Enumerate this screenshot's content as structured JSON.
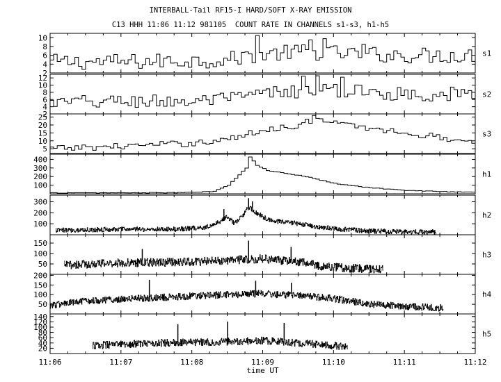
{
  "title_line1": "INTERBALL-Tail RF15-I HARD/SOFT X-RAY EMISSION",
  "title_line2": "C13 HHH 11:06 11:12 981105  COUNT RATE IN CHANNELS s1-s3, h1-h5",
  "chart_data": {
    "type": "line",
    "style": "stepped time series, stacked panels, black on white",
    "xlabel": "time UT",
    "x_unit": "minutes after 11:06 UT",
    "xlim": [
      0,
      6
    ],
    "x_ticks": [
      0,
      1,
      2,
      3,
      4,
      5,
      6
    ],
    "x_tick_labels": [
      "11:06",
      "11:07",
      "11:08",
      "11:09",
      "11:10",
      "11:11",
      "11:12"
    ],
    "grid": false,
    "panels": [
      {
        "name": "s1",
        "ylim": [
          2,
          11
        ],
        "yticks": [
          2,
          4,
          6,
          8,
          10
        ],
        "step": 0.05,
        "coverage": [
          0,
          6
        ],
        "keypoints": [
          [
            0,
            4.5
          ],
          [
            1,
            4.5
          ],
          [
            2,
            4.8
          ],
          [
            2.5,
            5
          ],
          [
            2.8,
            6
          ],
          [
            3,
            6.2
          ],
          [
            3.5,
            6.8
          ],
          [
            4,
            6.5
          ],
          [
            5,
            6
          ],
          [
            6,
            6
          ]
        ],
        "noise": 1.8,
        "spikes": [
          [
            2.9,
            10.5
          ],
          [
            3.65,
            9.5
          ],
          [
            3.85,
            9.8
          ],
          [
            4.4,
            8.5
          ]
        ]
      },
      {
        "name": "s2",
        "ylim": [
          2,
          13
        ],
        "yticks": [
          2,
          4,
          6,
          8,
          10,
          12
        ],
        "step": 0.05,
        "coverage": [
          0,
          6
        ],
        "keypoints": [
          [
            0,
            5
          ],
          [
            1,
            5.5
          ],
          [
            2,
            5.5
          ],
          [
            2.5,
            6
          ],
          [
            3,
            7.5
          ],
          [
            3.5,
            8.5
          ],
          [
            4,
            8.5
          ],
          [
            4.5,
            8
          ],
          [
            5,
            7.5
          ],
          [
            6,
            7.5
          ]
        ],
        "noise": 2.0,
        "spikes": [
          [
            3.55,
            12.5
          ],
          [
            3.75,
            12.6
          ],
          [
            4.1,
            12.2
          ]
        ]
      },
      {
        "name": "s3",
        "ylim": [
          2,
          27
        ],
        "yticks": [
          5,
          10,
          15,
          20,
          25
        ],
        "step": 0.05,
        "coverage": [
          0,
          6
        ],
        "keypoints": [
          [
            0,
            5
          ],
          [
            0.6,
            6
          ],
          [
            1.2,
            7
          ],
          [
            2,
            8.5
          ],
          [
            2.5,
            11
          ],
          [
            3,
            17
          ],
          [
            3.5,
            20
          ],
          [
            3.7,
            24
          ],
          [
            4,
            21
          ],
          [
            4.5,
            18
          ],
          [
            5,
            15
          ],
          [
            5.5,
            12
          ],
          [
            6,
            9
          ]
        ],
        "noise": 2.0,
        "spikes": [
          [
            3.7,
            26
          ]
        ]
      },
      {
        "name": "h1",
        "ylim": [
          0,
          460
        ],
        "yticks": [
          100,
          200,
          300,
          400
        ],
        "step": 0.05,
        "coverage": [
          0,
          6
        ],
        "keypoints": [
          [
            0,
            10
          ],
          [
            1.5,
            12
          ],
          [
            2,
            15
          ],
          [
            2.3,
            30
          ],
          [
            2.5,
            100
          ],
          [
            2.6,
            180
          ],
          [
            2.75,
            300
          ],
          [
            2.8,
            430
          ],
          [
            2.9,
            330
          ],
          [
            3.05,
            270
          ],
          [
            3.3,
            240
          ],
          [
            3.6,
            200
          ],
          [
            4,
            120
          ],
          [
            4.5,
            70
          ],
          [
            5,
            40
          ],
          [
            5.5,
            25
          ],
          [
            6,
            20
          ]
        ],
        "noise": 4,
        "spikes": []
      },
      {
        "name": "h2",
        "ylim": [
          0,
          360
        ],
        "yticks": [
          100,
          200,
          300
        ],
        "step": 0.006,
        "coverage": [
          0.08,
          5.45
        ],
        "keypoints": [
          [
            0.08,
            40
          ],
          [
            1,
            50
          ],
          [
            1.8,
            50
          ],
          [
            2.2,
            70
          ],
          [
            2.4,
            120
          ],
          [
            2.5,
            170
          ],
          [
            2.6,
            100
          ],
          [
            2.7,
            160
          ],
          [
            2.8,
            250
          ],
          [
            2.9,
            200
          ],
          [
            3.1,
            130
          ],
          [
            3.4,
            110
          ],
          [
            3.7,
            80
          ],
          [
            4,
            55
          ],
          [
            4.5,
            35
          ],
          [
            5,
            25
          ],
          [
            5.45,
            25
          ]
        ],
        "noise": 22,
        "spikes": [
          [
            2.45,
            230
          ],
          [
            2.8,
            330
          ],
          [
            2.85,
            300
          ]
        ]
      },
      {
        "name": "h3",
        "ylim": [
          0,
          190
        ],
        "yticks": [
          50,
          100,
          150
        ],
        "step": 0.006,
        "coverage": [
          0.2,
          4.7
        ],
        "keypoints": [
          [
            0.2,
            45
          ],
          [
            1,
            55
          ],
          [
            2,
            60
          ],
          [
            3,
            75
          ],
          [
            3.6,
            55
          ],
          [
            3.8,
            40
          ],
          [
            4.2,
            30
          ],
          [
            4.7,
            25
          ]
        ],
        "noise": 20,
        "spikes": [
          [
            1.3,
            120
          ],
          [
            2.8,
            160
          ],
          [
            3.4,
            130
          ]
        ]
      },
      {
        "name": "h4",
        "ylim": [
          0,
          205
        ],
        "yticks": [
          50,
          100,
          150,
          200
        ],
        "step": 0.006,
        "coverage": [
          0.0,
          5.55
        ],
        "keypoints": [
          [
            0,
            45
          ],
          [
            0.6,
            70
          ],
          [
            1.5,
            85
          ],
          [
            2.5,
            100
          ],
          [
            3,
            105
          ],
          [
            3.5,
            95
          ],
          [
            4,
            80
          ],
          [
            4.5,
            50
          ],
          [
            5,
            40
          ],
          [
            5.55,
            30
          ]
        ],
        "noise": 18,
        "spikes": [
          [
            1.4,
            175
          ],
          [
            2.9,
            170
          ],
          [
            3.4,
            160
          ]
        ]
      },
      {
        "name": "h5",
        "ylim": [
          0,
          150
        ],
        "yticks": [
          20,
          40,
          60,
          80,
          100,
          120,
          140
        ],
        "step": 0.006,
        "coverage": [
          0.6,
          4.2
        ],
        "keypoints": [
          [
            0.6,
            30
          ],
          [
            1.5,
            40
          ],
          [
            2.5,
            45
          ],
          [
            3,
            50
          ],
          [
            3.5,
            40
          ],
          [
            4,
            30
          ],
          [
            4.2,
            25
          ]
        ],
        "noise": 14,
        "spikes": [
          [
            1.8,
            110
          ],
          [
            2.5,
            120
          ],
          [
            3.3,
            115
          ]
        ]
      }
    ]
  }
}
